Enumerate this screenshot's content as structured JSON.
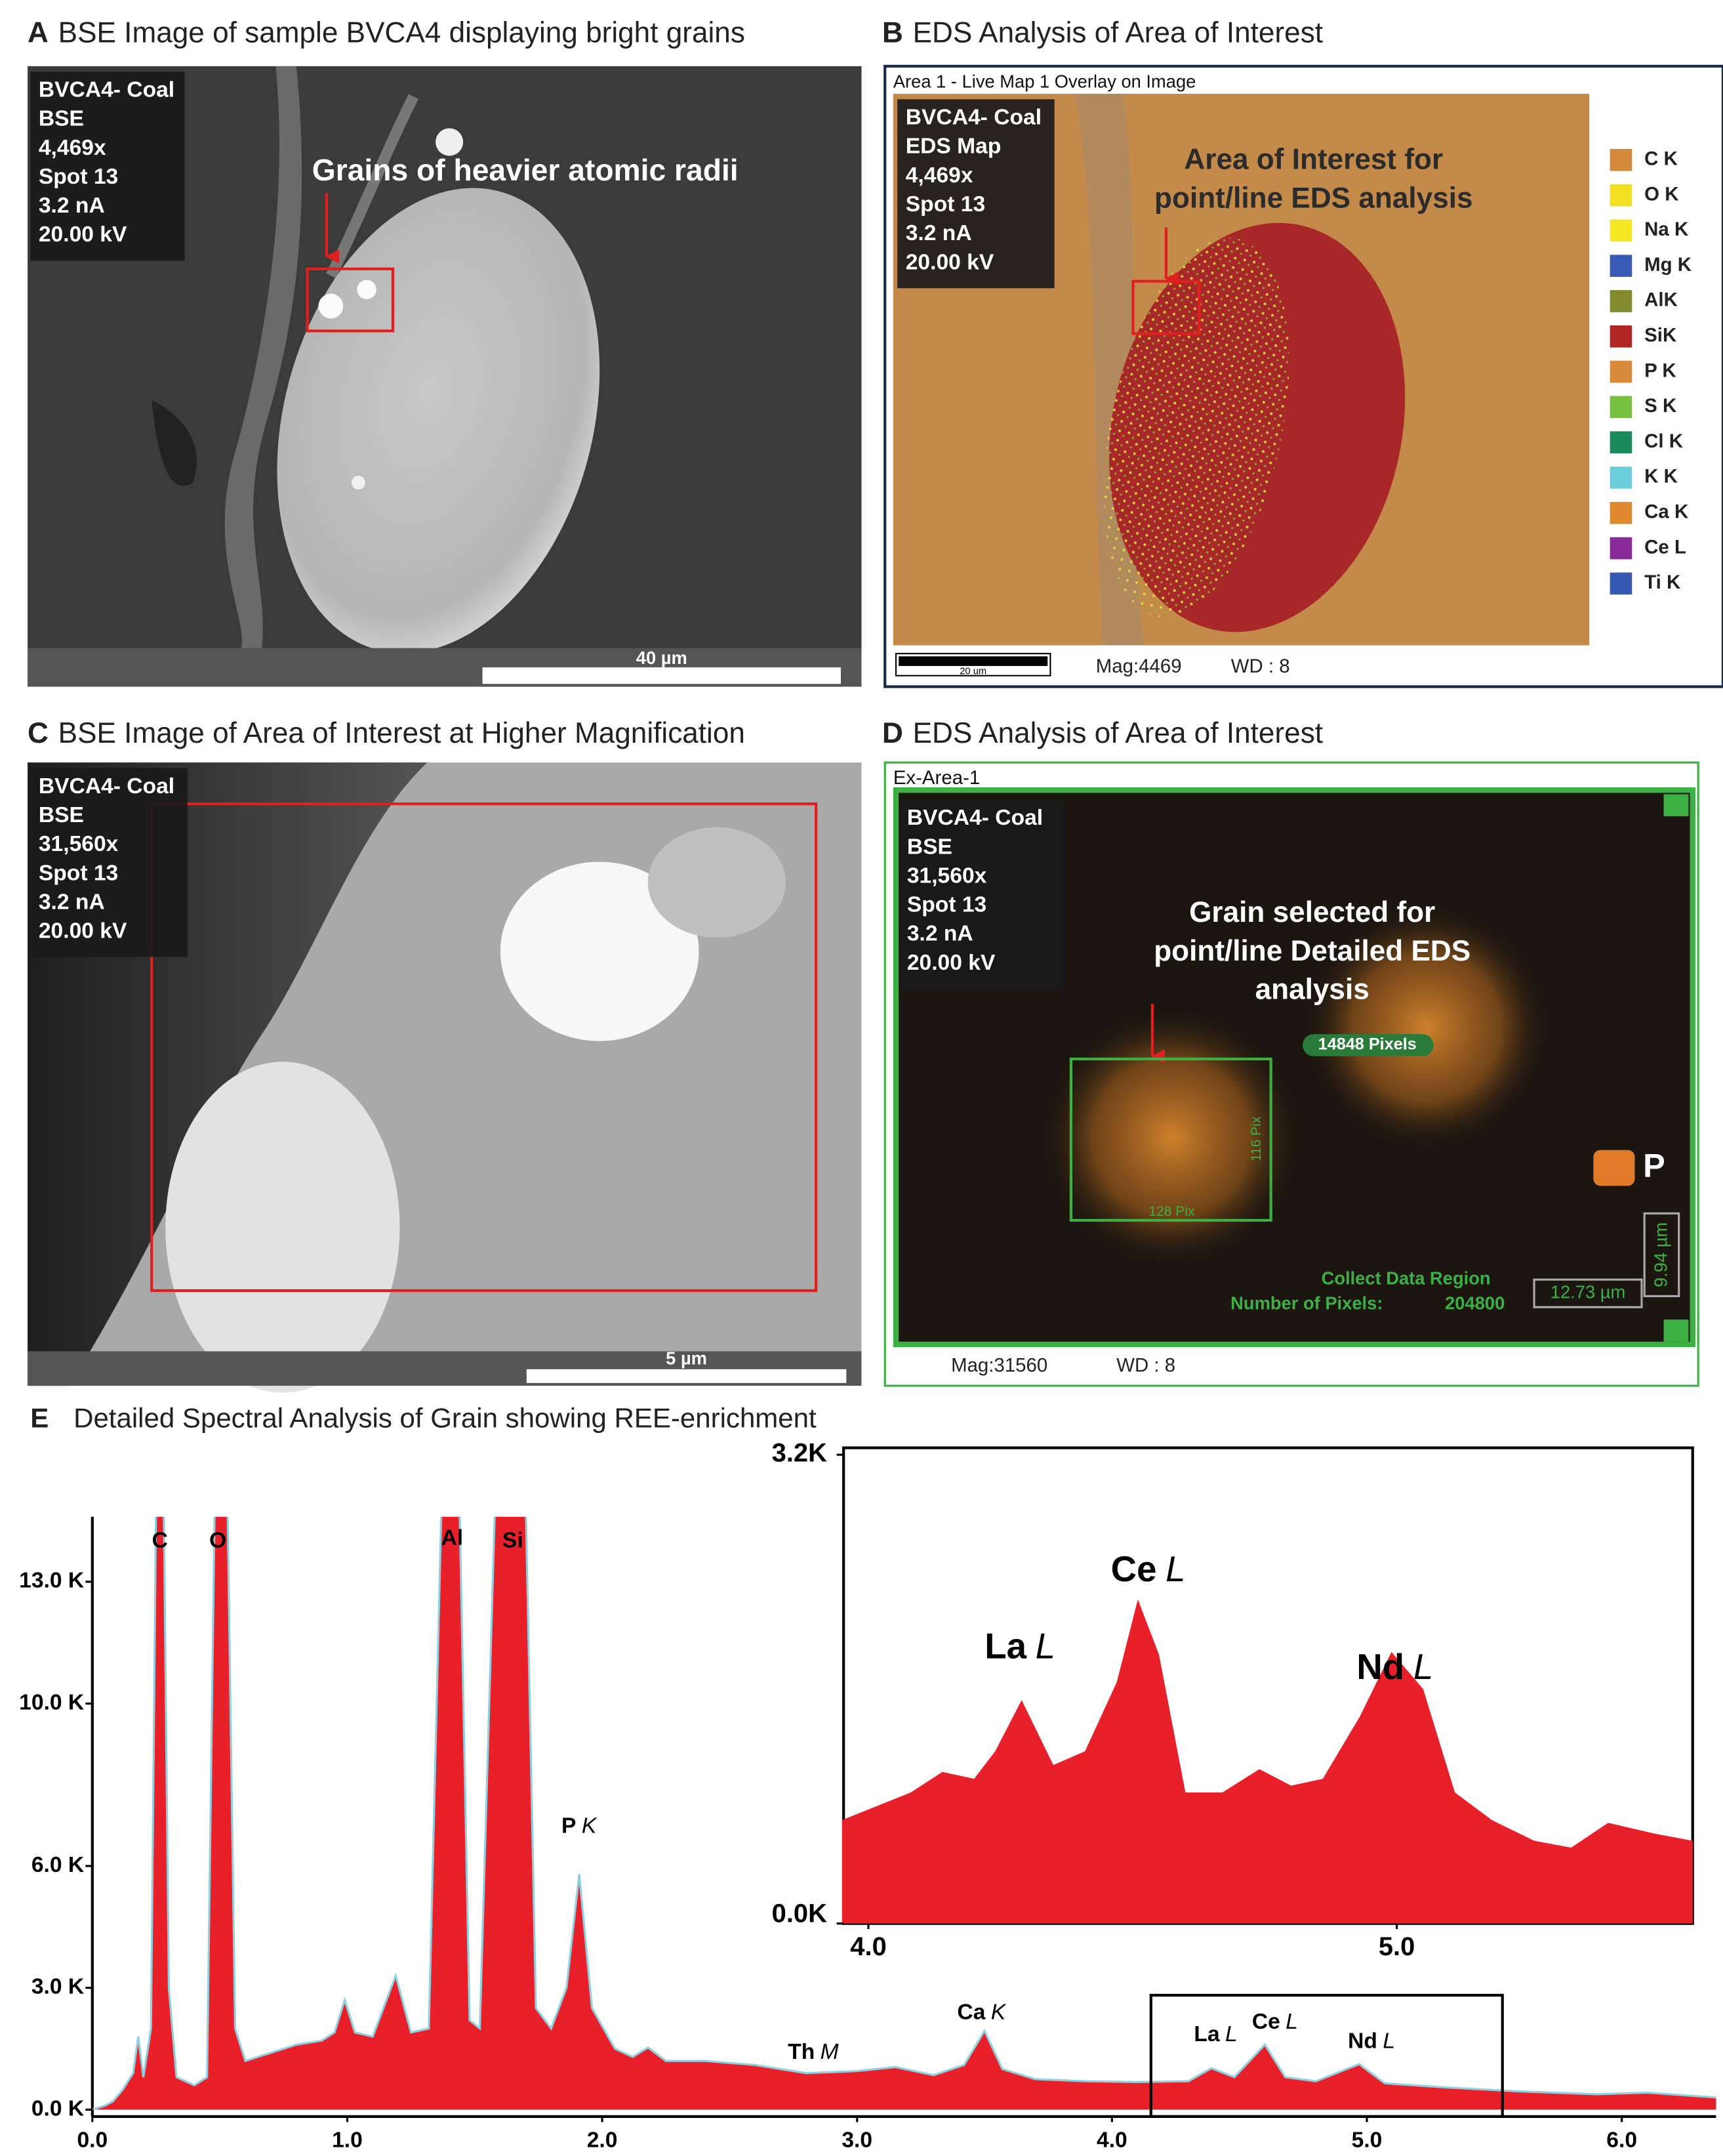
{
  "panels": {
    "a": {
      "letter": "A",
      "title": "BSE Image of sample BVCA4 displaying bright grains",
      "info": [
        "BVCA4- Coal",
        "BSE",
        "4,469x",
        "Spot 13",
        "3.2 nA",
        "20.00 kV"
      ],
      "annotation": "Grains of heavier atomic radii",
      "scale_bar": "40 µm"
    },
    "b": {
      "letter": "B",
      "title": "EDS Analysis of Area of Interest",
      "header": "Area 1 - Live Map 1 Overlay on Image",
      "info": [
        "BVCA4- Coal",
        "EDS Map",
        "4,469x",
        "Spot 13",
        "3.2 nA",
        "20.00 kV"
      ],
      "annotation": [
        "Area of Interest for",
        "point/line EDS analysis"
      ],
      "legend": [
        {
          "label": "C K",
          "color": "#d4893a"
        },
        {
          "label": "O K",
          "color": "#f0e020"
        },
        {
          "label": "Na K",
          "color": "#f5e624"
        },
        {
          "label": "Mg K",
          "color": "#3a5bb5"
        },
        {
          "label": "AlK",
          "color": "#808a2c"
        },
        {
          "label": "SiK",
          "color": "#b22525"
        },
        {
          "label": "P K",
          "color": "#d98a3a"
        },
        {
          "label": "S K",
          "color": "#78c040"
        },
        {
          "label": "Cl K",
          "color": "#1a8a5a"
        },
        {
          "label": "K K",
          "color": "#6ccfd9"
        },
        {
          "label": "Ca K",
          "color": "#e08a30"
        },
        {
          "label": "Ce L",
          "color": "#8a2a9a"
        },
        {
          "label": "Ti K",
          "color": "#3658b0"
        }
      ],
      "scale_bar": "20 um",
      "mag": "Mag:4469",
      "wd": "WD : 8"
    },
    "c": {
      "letter": "C",
      "title": "BSE Image of Area of Interest at Higher Magnification",
      "info": [
        "BVCA4- Coal",
        "BSE",
        "31,560x",
        "Spot 13",
        "3.2 nA",
        "20.00 kV"
      ],
      "scale_bar": "5 µm"
    },
    "d": {
      "letter": "D",
      "title": "EDS Analysis of Area of Interest",
      "header": "Ex-Area-1",
      "info": [
        "BVCA4- Coal",
        "BSE",
        "31,560x",
        "Spot 13",
        "3.2 nA",
        "20.00 kV"
      ],
      "annotation": [
        "Grain selected for",
        "point/line Detailed EDS",
        "analysis"
      ],
      "pixels_label": "14848 Pixels",
      "box_height": "116 Pix",
      "box_width": "128 Pix",
      "element": {
        "label": "P",
        "color": "#e07b2a"
      },
      "region_label": "Collect Data Region",
      "pixels_count_label": "Number of Pixels:",
      "pixels_count": 204800,
      "width_um": "12.73 µm",
      "height_um": "9.94 µm",
      "mag": "Mag:31560",
      "wd": "WD : 8"
    },
    "e": {
      "letter": "E",
      "title": "Detailed Spectral Analysis of Grain showing REE-enrichment",
      "chart": {
        "type": "area",
        "color": "#e8202a",
        "line_color": "#8fd0e0",
        "x": [
          0.0,
          0.05,
          0.08,
          0.12,
          0.16,
          0.18,
          0.2,
          0.23,
          0.25,
          0.28,
          0.3,
          0.33,
          0.4,
          0.45,
          0.48,
          0.53,
          0.56,
          0.6,
          0.7,
          0.8,
          0.9,
          0.95,
          0.99,
          1.03,
          1.1,
          1.19,
          1.25,
          1.32,
          1.37,
          1.44,
          1.48,
          1.52,
          1.58,
          1.7,
          1.74,
          1.8,
          1.86,
          1.91,
          1.96,
          2.05,
          2.12,
          2.18,
          2.25,
          2.4,
          2.6,
          2.8,
          3.0,
          3.15,
          3.3,
          3.42,
          3.5,
          3.57,
          3.7,
          3.9,
          4.1,
          4.3,
          4.39,
          4.48,
          4.6,
          4.68,
          4.8,
          4.97,
          5.07,
          5.3,
          5.6,
          5.9,
          6.1,
          6.37
        ],
        "values": [
          0,
          100,
          200,
          500,
          900,
          1800,
          800,
          2000,
          15000,
          15000,
          3000,
          800,
          600,
          800,
          15000,
          15000,
          2000,
          1200,
          1400,
          1600,
          1700,
          1900,
          2700,
          1900,
          1800,
          3300,
          1900,
          2000,
          15000,
          15000,
          2200,
          2000,
          15000,
          15000,
          2500,
          2000,
          3000,
          5800,
          2500,
          1500,
          1300,
          1530,
          1200,
          1200,
          1100,
          900,
          950,
          1050,
          850,
          1100,
          1940,
          1000,
          750,
          700,
          680,
          700,
          1020,
          800,
          1600,
          800,
          700,
          1120,
          650,
          550,
          450,
          380,
          420,
          300
        ],
        "xlim": [
          0,
          6.37
        ],
        "ylim": [
          0,
          14600
        ],
        "xticks": [
          {
            "value": 0,
            "label": "0.0"
          },
          {
            "value": 1,
            "label": "1.0"
          },
          {
            "value": 2,
            "label": "2.0"
          },
          {
            "value": 3,
            "label": "3.0"
          },
          {
            "value": 4,
            "label": "4.0"
          },
          {
            "value": 5,
            "label": "5.0"
          },
          {
            "value": 6,
            "label": "6.0"
          }
        ],
        "yticks": [
          {
            "value": 0,
            "label": "0.0 K"
          },
          {
            "value": 3000,
            "label": "3.0 K"
          },
          {
            "value": 6000,
            "label": "6.0 K"
          },
          {
            "value": 10000,
            "label": "10.0 K"
          },
          {
            "value": 13000,
            "label": "13.0 K"
          }
        ],
        "peaks": [
          {
            "element": "C"
          },
          {
            "element": "O"
          },
          {
            "element": "Al"
          },
          {
            "element": "Si"
          },
          {
            "element": "P",
            "line": "K"
          },
          {
            "element": "Th",
            "line": "M"
          },
          {
            "element": "Ca",
            "line": "K"
          },
          {
            "element": "La",
            "line": "L"
          },
          {
            "element": "Ce",
            "line": "L"
          },
          {
            "element": "Nd",
            "line": "L"
          }
        ]
      },
      "inset": {
        "type": "area",
        "color": "#e8202a",
        "x": [
          3.95,
          4.08,
          4.14,
          4.2,
          4.24,
          4.29,
          4.35,
          4.41,
          4.47,
          4.51,
          4.55,
          4.6,
          4.67,
          4.74,
          4.8,
          4.86,
          4.93,
          4.99,
          5.05,
          5.11,
          5.18,
          5.26,
          5.33,
          5.4,
          5.49,
          5.56
        ],
        "values": [
          706,
          894,
          1035,
          988,
          1176,
          1525,
          1082,
          1176,
          1647,
          2212,
          1835,
          894,
          894,
          1054,
          941,
          988,
          1412,
          1854,
          1600,
          894,
          706,
          565,
          518,
          687,
          612,
          565
        ],
        "xlim": [
          3.953,
          5.56
        ],
        "ylim": [
          0,
          3200
        ],
        "xticks": [
          {
            "value": 4,
            "label": "4.0"
          },
          {
            "value": 5,
            "label": "5.0"
          }
        ],
        "yticks": [
          {
            "value": 0,
            "label": "0.0K"
          },
          {
            "value": 3200,
            "label": "3.2K"
          }
        ],
        "peaks": [
          {
            "element": "La",
            "line": "L"
          },
          {
            "element": "Ce",
            "line": "L"
          },
          {
            "element": "Nd",
            "line": "L"
          }
        ]
      }
    }
  }
}
